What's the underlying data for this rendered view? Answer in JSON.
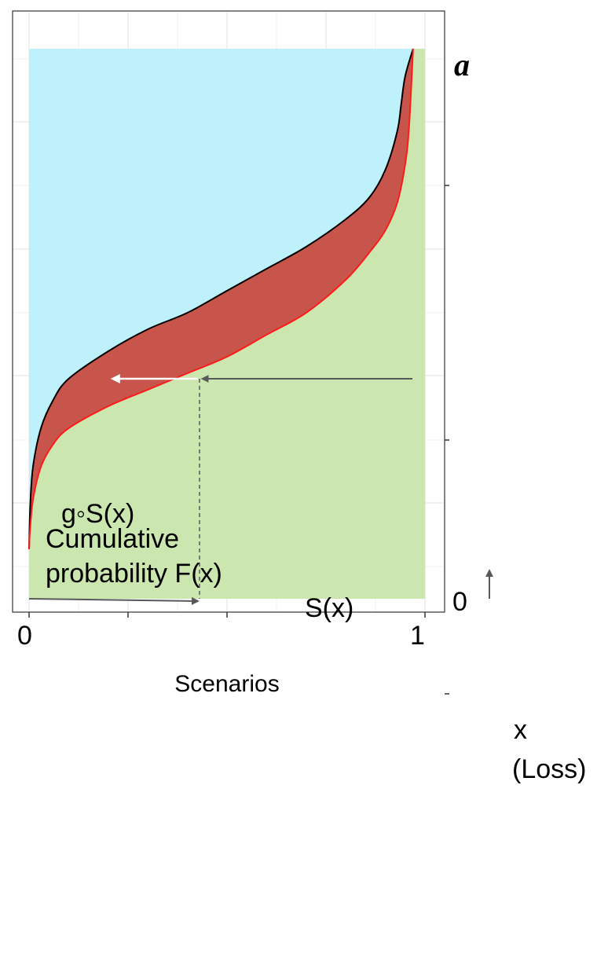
{
  "chart_data": {
    "type": "area",
    "xlabel": "Scenarios",
    "x_tick_labels": [
      "0",
      "1"
    ],
    "y_tick_labels": [
      "0",
      "a"
    ],
    "xlim": [
      0,
      1
    ],
    "ylim": [
      0,
      1
    ],
    "grid": true,
    "series": [
      {
        "name": "S(x)",
        "role": "lower curve (red line)",
        "x": [
          0.0,
          0.002,
          0.01,
          0.03,
          0.06,
          0.1,
          0.2,
          0.3,
          0.4,
          0.5,
          0.6,
          0.7,
          0.8,
          0.86,
          0.9,
          0.93,
          0.95,
          0.96,
          0.97
        ],
        "y": [
          0.09,
          0.12,
          0.18,
          0.24,
          0.28,
          0.31,
          0.35,
          0.38,
          0.41,
          0.44,
          0.48,
          0.52,
          0.58,
          0.63,
          0.67,
          0.72,
          0.79,
          0.86,
          1.0
        ]
      },
      {
        "name": "g◦S(x)",
        "role": "upper curve (black line)",
        "x": [
          0.0,
          0.003,
          0.01,
          0.03,
          0.06,
          0.1,
          0.2,
          0.3,
          0.4,
          0.5,
          0.6,
          0.7,
          0.8,
          0.86,
          0.9,
          0.93,
          0.94,
          0.95,
          0.97
        ],
        "y": [
          0.09,
          0.17,
          0.24,
          0.31,
          0.36,
          0.4,
          0.45,
          0.49,
          0.52,
          0.56,
          0.6,
          0.64,
          0.69,
          0.73,
          0.78,
          0.85,
          0.9,
          0.95,
          1.0
        ]
      }
    ],
    "fills": {
      "below_S": "#cbe6ae",
      "between": "#c8554b",
      "above_gS": "#bff1fc"
    },
    "annotations": {
      "gS_label": "g◦S(x)",
      "S_label": "S(x)",
      "x_label_line1": "x",
      "x_label_line2": "(Loss)",
      "cdf_line1": "Cumulative",
      "cdf_line2": "probability F(x)",
      "arrow_level_y": 0.4,
      "arrow_S_x": 0.43,
      "arrow_gS_x": 0.2
    },
    "colors": {
      "arrow_gray": "#595959",
      "arrow_white": "#ffffff",
      "grid": "#ebebeb",
      "axis": "#333333"
    }
  }
}
